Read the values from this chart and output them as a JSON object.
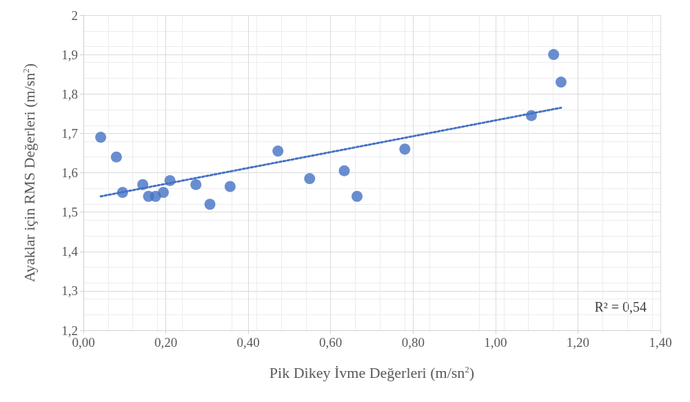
{
  "chart_data": {
    "type": "scatter",
    "xlabel": "Pik Dikey İvme Değerleri (m/sn$^{2}$)",
    "ylabel": "Ayaklar için RMS Değerleri (m/sn$^{2}$)",
    "annotations": [
      "R² = 0,54"
    ],
    "series": [
      {
        "color": "#4472c4",
        "marker": "circle",
        "x": [
          0.042,
          0.08,
          0.095,
          0.144,
          0.158,
          0.175,
          0.194,
          0.21,
          0.273,
          0.307,
          0.356,
          0.472,
          0.549,
          0.633,
          0.664,
          0.78,
          1.087,
          1.141,
          1.159
        ],
        "values": [
          1.69,
          1.64,
          1.55,
          1.57,
          1.54,
          1.54,
          1.55,
          1.58,
          1.57,
          1.52,
          1.565,
          1.655,
          1.585,
          1.605,
          1.54,
          1.66,
          1.745,
          1.9,
          1.83
        ]
      },
      {
        "type": "line",
        "color": "#4472c4",
        "line_style": "dotted",
        "marker": "none",
        "x": [
          0.042,
          1.159
        ],
        "values": [
          1.54,
          1.765
        ]
      }
    ],
    "xlim": [
      0,
      1.4
    ],
    "xticks": [
      {
        "value": 0,
        "label": "0,00"
      },
      {
        "value": 0.2,
        "label": "0,20"
      },
      {
        "value": 0.4,
        "label": "0,40"
      },
      {
        "value": 0.6,
        "label": "0,60"
      },
      {
        "value": 0.8,
        "label": "0,80"
      },
      {
        "value": 1.0,
        "label": "1,00"
      },
      {
        "value": 1.2,
        "label": "1,20"
      },
      {
        "value": 1.4,
        "label": "1,40"
      }
    ],
    "ylim": [
      1.2,
      2
    ],
    "yticks": [
      {
        "value": 1.2,
        "label": "1,2"
      },
      {
        "value": 1.3,
        "label": "1,3"
      },
      {
        "value": 1.4,
        "label": "1,4"
      },
      {
        "value": 1.5,
        "label": "1,5"
      },
      {
        "value": 1.6,
        "label": "1,6"
      },
      {
        "value": 1.7,
        "label": "1,7"
      },
      {
        "value": 1.8,
        "label": "1,8"
      },
      {
        "value": 1.9,
        "label": "1,9"
      },
      2
    ],
    "grid": true
  }
}
